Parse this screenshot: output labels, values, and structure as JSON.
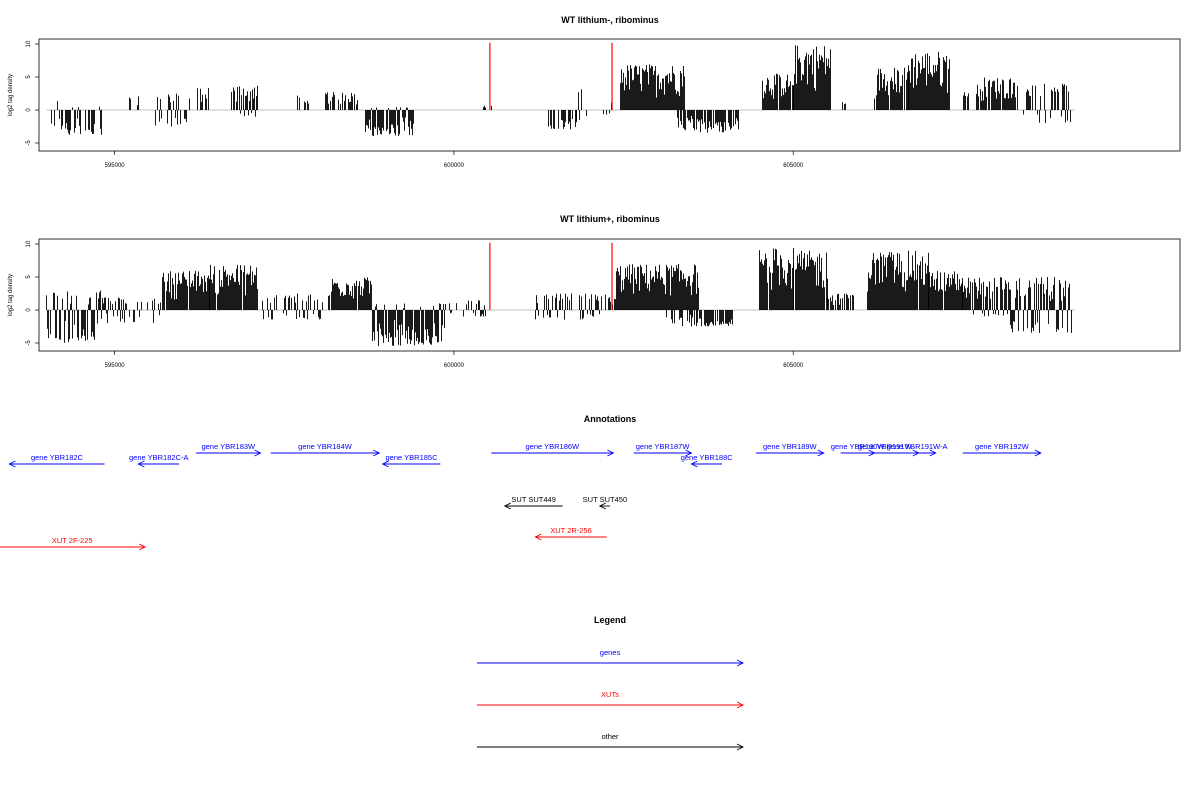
{
  "colors": {
    "genes": "#0000ff",
    "xuts": "#ff0000",
    "other": "#000000",
    "signal": "#000000",
    "baseline": "#aaaaaa",
    "marker": "#ff0000"
  },
  "chart_data": [
    {
      "type": "bar",
      "title": "WT lithium-, ribominus",
      "ylabel": "log2 tag density",
      "xlim": [
        593900,
        610700
      ],
      "ylim": [
        -5,
        10
      ],
      "x_ticks": [
        595000,
        600000,
        605000
      ],
      "y_ticks": [
        -5,
        0,
        5,
        10
      ],
      "grid": false,
      "markers": [
        {
          "x": 600530,
          "y": 10.2
        },
        {
          "x": 602330,
          "y": 10.2
        }
      ],
      "regions": [
        {
          "start": 594050,
          "end": 594200,
          "min": -2.5,
          "max": 1.5,
          "density": 0.5
        },
        {
          "start": 594200,
          "end": 594800,
          "min": -4,
          "max": 0.5,
          "density": 0.5
        },
        {
          "start": 595200,
          "end": 595400,
          "min": 0,
          "max": 2.7,
          "density": 0.5
        },
        {
          "start": 595600,
          "end": 596100,
          "min": -2.8,
          "max": 2.5,
          "density": 0.5
        },
        {
          "start": 596200,
          "end": 596400,
          "min": 0,
          "max": 3.4,
          "density": 0.5
        },
        {
          "start": 596700,
          "end": 597100,
          "min": -1,
          "max": 3.8,
          "density": 0.8
        },
        {
          "start": 597700,
          "end": 597900,
          "min": 0,
          "max": 2.2,
          "density": 0.5
        },
        {
          "start": 598000,
          "end": 598600,
          "min": 0,
          "max": 2.8,
          "density": 0.5
        },
        {
          "start": 598700,
          "end": 599400,
          "min": -4,
          "max": 0.5,
          "density": 0.9
        },
        {
          "start": 600400,
          "end": 600550,
          "min": 0,
          "max": 0.7,
          "density": 0.4
        },
        {
          "start": 601400,
          "end": 601800,
          "min": -3,
          "max": 0,
          "density": 0.5
        },
        {
          "start": 601800,
          "end": 602000,
          "min": -1.5,
          "max": 3.2,
          "density": 0.6
        },
        {
          "start": 602200,
          "end": 602350,
          "min": -1,
          "max": 1.5,
          "density": 0.6
        },
        {
          "start": 602450,
          "end": 603400,
          "min": 0,
          "max": 7,
          "density": 0.98
        },
        {
          "start": 603300,
          "end": 604200,
          "min": -3.5,
          "max": 0,
          "density": 0.8
        },
        {
          "start": 604550,
          "end": 605000,
          "min": 0,
          "max": 5.5,
          "density": 0.95
        },
        {
          "start": 605000,
          "end": 605550,
          "min": 0,
          "max": 10,
          "density": 0.98
        },
        {
          "start": 605700,
          "end": 605800,
          "min": 0,
          "max": 1.5,
          "density": 0.5
        },
        {
          "start": 606200,
          "end": 606700,
          "min": 0,
          "max": 6.5,
          "density": 0.9
        },
        {
          "start": 606700,
          "end": 607300,
          "min": 0,
          "max": 9,
          "density": 0.97
        },
        {
          "start": 607500,
          "end": 607600,
          "min": 0,
          "max": 3.5,
          "density": 0.6
        },
        {
          "start": 607700,
          "end": 608300,
          "min": 0,
          "max": 5,
          "density": 0.9
        },
        {
          "start": 608400,
          "end": 609100,
          "min": -2,
          "max": 4,
          "density": 0.6
        }
      ]
    },
    {
      "type": "bar",
      "title": "WT lithium+, ribominus",
      "ylabel": "log2 tag density",
      "xlim": [
        593900,
        610700
      ],
      "ylim": [
        -5,
        10
      ],
      "x_ticks": [
        595000,
        600000,
        605000
      ],
      "y_ticks": [
        -5,
        0,
        5,
        10
      ],
      "grid": false,
      "markers": [
        {
          "x": 600530,
          "y": 10.2
        },
        {
          "x": 602330,
          "y": 10.2
        }
      ],
      "regions": [
        {
          "start": 594000,
          "end": 594800,
          "min": -5,
          "max": 3,
          "density": 0.8
        },
        {
          "start": 594800,
          "end": 595700,
          "min": -2,
          "max": 2,
          "density": 0.6
        },
        {
          "start": 595700,
          "end": 596400,
          "min": 0,
          "max": 6,
          "density": 0.95
        },
        {
          "start": 596400,
          "end": 597100,
          "min": 0,
          "max": 7,
          "density": 0.97
        },
        {
          "start": 597100,
          "end": 598200,
          "min": -1.5,
          "max": 2.5,
          "density": 0.5
        },
        {
          "start": 598200,
          "end": 598800,
          "min": 0,
          "max": 5,
          "density": 0.95
        },
        {
          "start": 598800,
          "end": 599900,
          "min": -5.5,
          "max": 1,
          "density": 0.95
        },
        {
          "start": 599900,
          "end": 600500,
          "min": -1,
          "max": 1.5,
          "density": 0.5
        },
        {
          "start": 601200,
          "end": 602200,
          "min": -1.5,
          "max": 2.5,
          "density": 0.6
        },
        {
          "start": 602200,
          "end": 602400,
          "min": 0,
          "max": 2.5,
          "density": 0.8
        },
        {
          "start": 602400,
          "end": 603600,
          "min": 0,
          "max": 7,
          "density": 0.98
        },
        {
          "start": 603100,
          "end": 604100,
          "min": -2.5,
          "max": 0,
          "density": 0.7
        },
        {
          "start": 604500,
          "end": 605000,
          "min": 0,
          "max": 9.5,
          "density": 0.97
        },
        {
          "start": 605000,
          "end": 605500,
          "min": 0,
          "max": 9,
          "density": 0.97
        },
        {
          "start": 605500,
          "end": 605900,
          "min": 0,
          "max": 2.5,
          "density": 0.6
        },
        {
          "start": 606100,
          "end": 607000,
          "min": 0,
          "max": 9,
          "density": 0.97
        },
        {
          "start": 607000,
          "end": 607500,
          "min": 0,
          "max": 6,
          "density": 0.95
        },
        {
          "start": 607500,
          "end": 608200,
          "min": -1,
          "max": 5,
          "density": 0.9
        },
        {
          "start": 608200,
          "end": 609100,
          "min": -3.5,
          "max": 5,
          "density": 0.9
        }
      ]
    }
  ],
  "annotations": {
    "title": "Annotations",
    "features": [
      {
        "label": "gene YBR182C",
        "start": 594850,
        "end": 593450,
        "kind": "genes"
      },
      {
        "label": "gene YBR182C-A",
        "start": 595950,
        "end": 595350,
        "kind": "genes"
      },
      {
        "label": "gene YBR183W",
        "start": 596200,
        "end": 597150,
        "kind": "genes"
      },
      {
        "label": "gene YBR184W",
        "start": 597300,
        "end": 598900,
        "kind": "genes"
      },
      {
        "label": "gene YBR185C",
        "start": 599800,
        "end": 598950,
        "kind": "genes"
      },
      {
        "label": "gene YBR186W",
        "start": 600550,
        "end": 602350,
        "kind": "genes"
      },
      {
        "label": "gene YBR187W",
        "start": 602650,
        "end": 603500,
        "kind": "genes"
      },
      {
        "label": "gene YBR188C",
        "start": 603950,
        "end": 603500,
        "kind": "genes"
      },
      {
        "label": "gene YBR189W",
        "start": 604450,
        "end": 605450,
        "kind": "genes"
      },
      {
        "label": "gene YBR190W",
        "start": 605700,
        "end": 606200,
        "kind": "genes"
      },
      {
        "label": "gene YBR191W",
        "start": 605850,
        "end": 606850,
        "kind": "genes"
      },
      {
        "label": "gene YBR191W-A",
        "start": 606550,
        "end": 607100,
        "kind": "genes"
      },
      {
        "label": "gene YBR192W",
        "start": 607500,
        "end": 608650,
        "kind": "genes"
      },
      {
        "label": "SUT SUT449",
        "start": 601600,
        "end": 600750,
        "kind": "other"
      },
      {
        "label": "SUT SUT450",
        "start": 602300,
        "end": 602150,
        "kind": "other"
      },
      {
        "label": "XUT 2F-225",
        "start": 593300,
        "end": 595450,
        "kind": "xuts"
      },
      {
        "label": "XUT 2R-256",
        "start": 602250,
        "end": 601200,
        "kind": "xuts"
      }
    ]
  },
  "legend": {
    "title": "Legend",
    "items": [
      {
        "label": "genes",
        "kind": "genes"
      },
      {
        "label": "XUTs",
        "kind": "xuts"
      },
      {
        "label": "other",
        "kind": "other"
      }
    ]
  }
}
